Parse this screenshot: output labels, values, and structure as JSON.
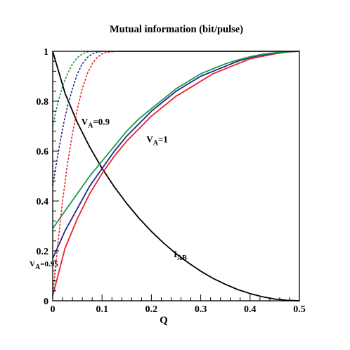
{
  "chart_data": {
    "type": "line",
    "title": "Mutual information (bit/pulse)",
    "xlabel": "Q",
    "ylabel": "",
    "xlim": [
      0,
      0.5
    ],
    "ylim": [
      0,
      1
    ],
    "xticks": [
      "0",
      "0.1",
      "0.2",
      "0.3",
      "0.4",
      "0.5"
    ],
    "yticks": [
      "0",
      "0.2",
      "0.4",
      "0.6",
      "0.8",
      "1"
    ],
    "grid": false,
    "legend": "none",
    "series": [
      {
        "name": "",
        "color": "#000000",
        "style": "solid",
        "points": [
          [
            0,
            1.0
          ],
          [
            0.025,
            0.832
          ],
          [
            0.05,
            0.714
          ],
          [
            0.075,
            0.616
          ],
          [
            0.1,
            0.531
          ],
          [
            0.125,
            0.456
          ],
          [
            0.15,
            0.39
          ],
          [
            0.175,
            0.331
          ],
          [
            0.2,
            0.278
          ],
          [
            0.225,
            0.231
          ],
          [
            0.25,
            0.189
          ],
          [
            0.275,
            0.152
          ],
          [
            0.3,
            0.119
          ],
          [
            0.325,
            0.09
          ],
          [
            0.35,
            0.066
          ],
          [
            0.375,
            0.045
          ],
          [
            0.4,
            0.029
          ],
          [
            0.425,
            0.016
          ],
          [
            0.45,
            0.007
          ],
          [
            0.475,
            0.002
          ],
          [
            0.5,
            0.0
          ]
        ]
      },
      {
        "name": "",
        "color": "#e8232a",
        "style": "solid",
        "points": [
          [
            0,
            0.02
          ],
          [
            0.025,
            0.21
          ],
          [
            0.05,
            0.33
          ],
          [
            0.075,
            0.43
          ],
          [
            0.1,
            0.51
          ],
          [
            0.125,
            0.58
          ],
          [
            0.15,
            0.64
          ],
          [
            0.175,
            0.69
          ],
          [
            0.2,
            0.74
          ],
          [
            0.225,
            0.78
          ],
          [
            0.25,
            0.82
          ],
          [
            0.275,
            0.85
          ],
          [
            0.3,
            0.88
          ],
          [
            0.325,
            0.91
          ],
          [
            0.35,
            0.93
          ],
          [
            0.375,
            0.95
          ],
          [
            0.4,
            0.97
          ],
          [
            0.425,
            0.98
          ],
          [
            0.45,
            0.99
          ],
          [
            0.475,
            0.997
          ],
          [
            0.5,
            1.0
          ]
        ]
      },
      {
        "name": "",
        "color": "#1c2a8c",
        "style": "solid",
        "points": [
          [
            0,
            0.17
          ],
          [
            0.025,
            0.28
          ],
          [
            0.05,
            0.37
          ],
          [
            0.075,
            0.46
          ],
          [
            0.1,
            0.53
          ],
          [
            0.125,
            0.6
          ],
          [
            0.15,
            0.66
          ],
          [
            0.175,
            0.71
          ],
          [
            0.2,
            0.76
          ],
          [
            0.225,
            0.8
          ],
          [
            0.25,
            0.84
          ],
          [
            0.275,
            0.87
          ],
          [
            0.3,
            0.9
          ],
          [
            0.325,
            0.92
          ],
          [
            0.35,
            0.94
          ],
          [
            0.375,
            0.96
          ],
          [
            0.4,
            0.975
          ],
          [
            0.425,
            0.985
          ],
          [
            0.45,
            0.993
          ],
          [
            0.475,
            0.998
          ],
          [
            0.5,
            1.0
          ]
        ]
      },
      {
        "name": "",
        "color": "#1a9a4a",
        "style": "solid",
        "points": [
          [
            0,
            0.29
          ],
          [
            0.025,
            0.36
          ],
          [
            0.05,
            0.43
          ],
          [
            0.075,
            0.5
          ],
          [
            0.1,
            0.56
          ],
          [
            0.125,
            0.62
          ],
          [
            0.15,
            0.68
          ],
          [
            0.175,
            0.73
          ],
          [
            0.2,
            0.77
          ],
          [
            0.225,
            0.81
          ],
          [
            0.25,
            0.85
          ],
          [
            0.275,
            0.88
          ],
          [
            0.3,
            0.91
          ],
          [
            0.325,
            0.93
          ],
          [
            0.35,
            0.95
          ],
          [
            0.375,
            0.965
          ],
          [
            0.4,
            0.978
          ],
          [
            0.425,
            0.988
          ],
          [
            0.45,
            0.994
          ],
          [
            0.475,
            0.998
          ],
          [
            0.5,
            1.0
          ]
        ]
      },
      {
        "name": "",
        "color": "#1a9a4a",
        "style": "dashed",
        "points": [
          [
            0,
            0.7
          ],
          [
            0.01,
            0.79
          ],
          [
            0.02,
            0.86
          ],
          [
            0.03,
            0.91
          ],
          [
            0.04,
            0.95
          ],
          [
            0.05,
            0.975
          ],
          [
            0.06,
            0.99
          ],
          [
            0.07,
            0.997
          ],
          [
            0.08,
            1.0
          ],
          [
            0.5,
            1.0
          ]
        ]
      },
      {
        "name": "",
        "color": "#1c2a8c",
        "style": "dashed",
        "points": [
          [
            0,
            0.46
          ],
          [
            0.01,
            0.58
          ],
          [
            0.02,
            0.69
          ],
          [
            0.03,
            0.78
          ],
          [
            0.04,
            0.85
          ],
          [
            0.05,
            0.91
          ],
          [
            0.06,
            0.95
          ],
          [
            0.07,
            0.975
          ],
          [
            0.08,
            0.99
          ],
          [
            0.09,
            0.997
          ],
          [
            0.1,
            1.0
          ],
          [
            0.5,
            1.0
          ]
        ]
      },
      {
        "name": "",
        "color": "#e8232a",
        "style": "dashed",
        "points": [
          [
            0,
            0.02
          ],
          [
            0.01,
            0.22
          ],
          [
            0.02,
            0.4
          ],
          [
            0.03,
            0.55
          ],
          [
            0.04,
            0.67
          ],
          [
            0.05,
            0.77
          ],
          [
            0.06,
            0.85
          ],
          [
            0.07,
            0.91
          ],
          [
            0.08,
            0.95
          ],
          [
            0.09,
            0.975
          ],
          [
            0.1,
            0.99
          ],
          [
            0.11,
            0.996
          ],
          [
            0.13,
            1.0
          ],
          [
            0.5,
            1.0
          ]
        ]
      }
    ],
    "annotations": [
      {
        "text": "V",
        "sub": "A",
        "suffix": "=0.9",
        "x": 0.058,
        "y": 0.705
      },
      {
        "text": "V",
        "sub": "A",
        "suffix": "=1",
        "x": 0.19,
        "y": 0.635
      },
      {
        "text": "I",
        "sub": "AB",
        "suffix": "",
        "x": 0.245,
        "y": 0.175
      },
      {
        "text": "V",
        "sub": "A",
        "suffix": "=0.95",
        "x": -0.047,
        "y": 0.138
      }
    ]
  }
}
